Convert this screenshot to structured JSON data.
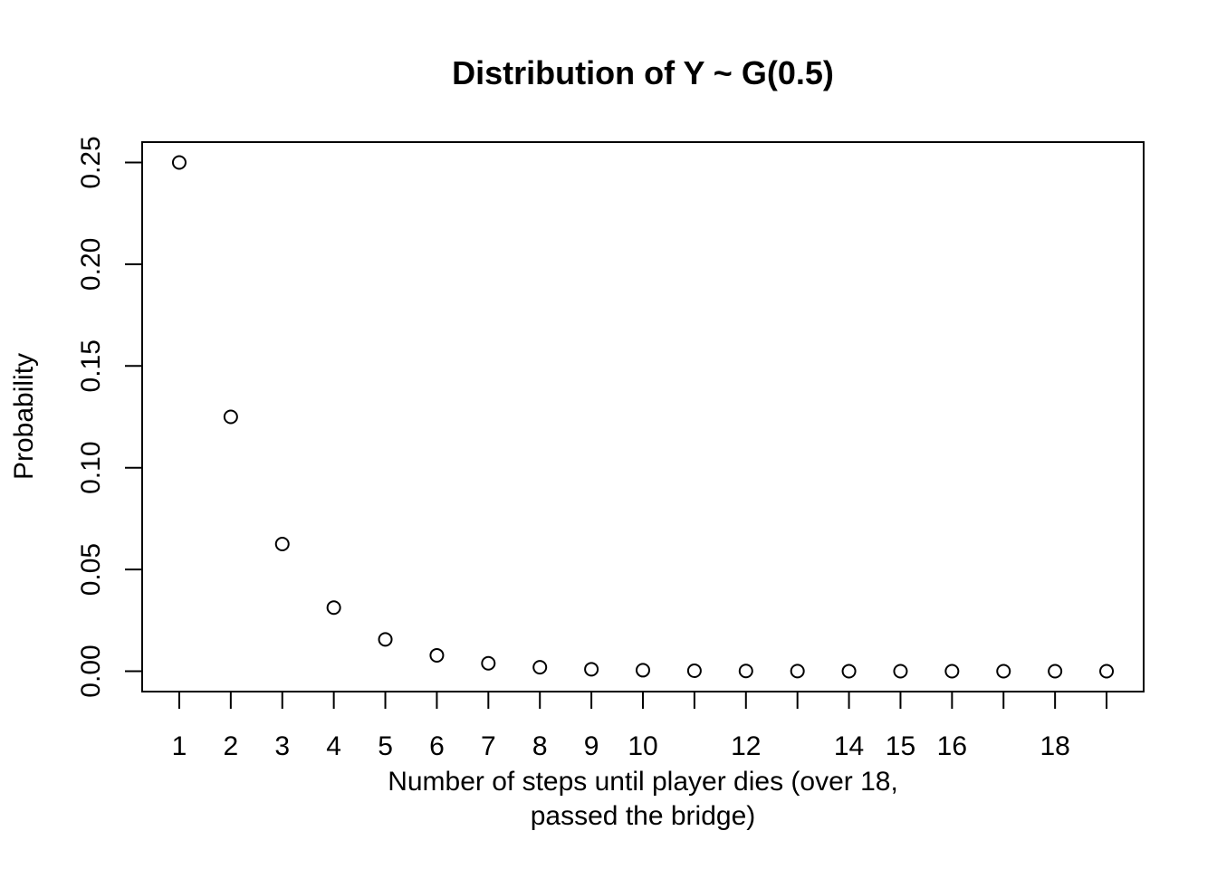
{
  "chart_data": {
    "type": "scatter",
    "title": "Distribution of Y ~ G(0.5)",
    "xlabel_lines": [
      "Number of steps until player dies (over 18,",
      "passed the bridge)"
    ],
    "ylabel": "Probability",
    "x": [
      1,
      2,
      3,
      4,
      5,
      6,
      7,
      8,
      9,
      10,
      11,
      12,
      13,
      14,
      15,
      16,
      17,
      18,
      19
    ],
    "y": [
      0.25,
      0.125,
      0.0625,
      0.03125,
      0.015625,
      0.0078125,
      0.00390625,
      0.001953125,
      0.0009765625,
      0.00048828125,
      0.000244140625,
      0.0001220703125,
      6.103515625e-05,
      3.0517578125e-05,
      1.52587890625e-05,
      7.62939453125e-06,
      3.814697265625e-06,
      1.9073486328125e-06,
      9.5367431640625e-07
    ],
    "x_ticks": [
      1,
      2,
      3,
      4,
      5,
      6,
      7,
      8,
      9,
      10,
      11,
      12,
      13,
      14,
      15,
      16,
      17,
      18,
      19
    ],
    "x_tick_labels": [
      "1",
      "2",
      "3",
      "4",
      "5",
      "6",
      "7",
      "8",
      "9",
      "10",
      "",
      "12",
      "",
      "14",
      "15",
      "16",
      "",
      "18",
      ""
    ],
    "y_ticks": [
      0.0,
      0.05,
      0.1,
      0.15,
      0.2,
      0.25
    ],
    "y_tick_labels": [
      "0.00",
      "0.05",
      "0.10",
      "0.15",
      "0.20",
      "0.25"
    ],
    "xlim": [
      0.28,
      19.72
    ],
    "ylim": [
      -0.01,
      0.26
    ],
    "marker": "open-circle",
    "grid": false
  }
}
